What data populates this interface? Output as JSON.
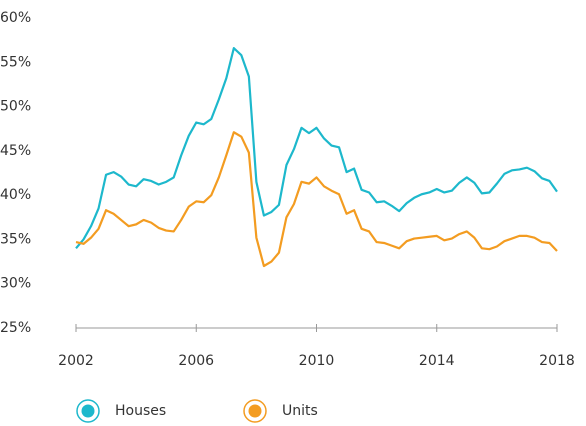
{
  "chart_data": {
    "type": "line",
    "x": [
      2002,
      2002.25,
      2002.5,
      2002.75,
      2003,
      2003.25,
      2003.5,
      2003.75,
      2004,
      2004.25,
      2004.5,
      2004.75,
      2005,
      2005.25,
      2005.5,
      2005.75,
      2006,
      2006.25,
      2006.5,
      2006.75,
      2007,
      2007.25,
      2007.5,
      2007.75,
      2008,
      2008.25,
      2008.5,
      2008.75,
      2009,
      2009.25,
      2009.5,
      2009.75,
      2010,
      2010.25,
      2010.5,
      2010.75,
      2011,
      2011.25,
      2011.5,
      2011.75,
      2012,
      2012.25,
      2012.5,
      2012.75,
      2013,
      2013.25,
      2013.5,
      2013.75,
      2014,
      2014.25,
      2014.5,
      2014.75,
      2015,
      2015.25,
      2015.5,
      2015.75,
      2016,
      2016.25,
      2016.5,
      2016.75,
      2017,
      2017.25,
      2017.5,
      2017.75,
      2018
    ],
    "series": [
      {
        "name": "Houses",
        "color": "#1db8cc",
        "values": [
          34,
          35,
          36.5,
          38.5,
          42.3,
          42.6,
          42.1,
          41.2,
          41.0,
          41.8,
          41.6,
          41.2,
          41.5,
          42.0,
          44.5,
          46.7,
          48.2,
          48.0,
          48.6,
          50.8,
          53.2,
          56.6,
          55.8,
          53.4,
          41.5,
          37.7,
          38.1,
          38.9,
          43.4,
          45.2,
          47.6,
          47.0,
          47.6,
          46.4,
          45.6,
          45.4,
          42.6,
          43.0,
          40.6,
          40.3,
          39.2,
          39.3,
          38.8,
          38.2,
          39.1,
          39.7,
          40.1,
          40.3,
          40.7,
          40.3,
          40.5,
          41.4,
          42.0,
          41.4,
          40.2,
          40.3,
          41.3,
          42.4,
          42.8,
          42.9,
          43.1,
          42.7,
          41.9,
          41.6,
          40.4
        ]
      },
      {
        "name": "Units",
        "color": "#f39c21",
        "values": [
          34.7,
          34.5,
          35.2,
          36.2,
          38.3,
          37.9,
          37.2,
          36.5,
          36.7,
          37.2,
          36.9,
          36.3,
          36.0,
          35.9,
          37.2,
          38.7,
          39.3,
          39.2,
          40.0,
          42.0,
          44.5,
          47.1,
          46.6,
          44.8,
          35.2,
          32.0,
          32.5,
          33.5,
          37.5,
          39.0,
          41.5,
          41.3,
          42.0,
          41.0,
          40.5,
          40.1,
          37.9,
          38.3,
          36.2,
          35.9,
          34.7,
          34.6,
          34.3,
          34.0,
          34.8,
          35.1,
          35.2,
          35.3,
          35.4,
          34.9,
          35.1,
          35.6,
          35.9,
          35.2,
          34.0,
          33.9,
          34.2,
          34.8,
          35.1,
          35.4,
          35.4,
          35.2,
          34.7,
          34.6,
          33.7
        ]
      }
    ],
    "xlim": [
      2002,
      2018
    ],
    "xticks": [
      2002,
      2006,
      2010,
      2014,
      2018
    ],
    "ylim": [
      25,
      60
    ],
    "yticks": [
      {
        "value": 25,
        "label": "25%"
      },
      {
        "value": 30,
        "label": "30%"
      },
      {
        "value": 35,
        "label": "35%"
      },
      {
        "value": 40,
        "label": "40%"
      },
      {
        "value": 45,
        "label": "45%"
      },
      {
        "value": 50,
        "label": "50%"
      },
      {
        "value": 55,
        "label": "55%"
      },
      {
        "value": 60,
        "label": "60%"
      }
    ],
    "grid": false
  }
}
